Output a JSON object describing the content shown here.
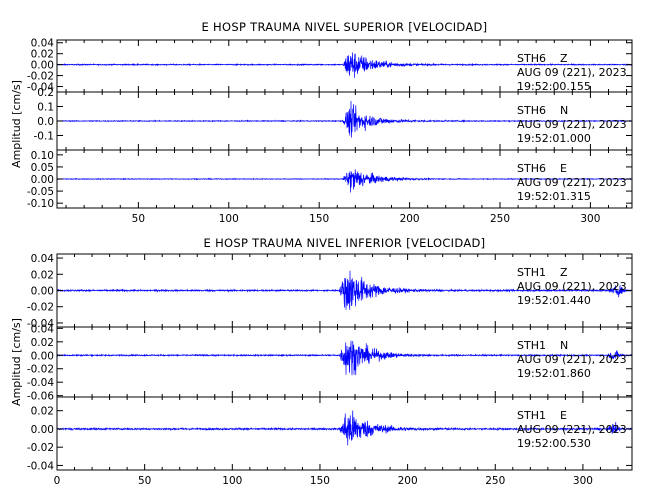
{
  "chart_data": [
    {
      "type": "line",
      "title": "E HOSP TRAUMA NIVEL SUPERIOR [VELOCIDAD]",
      "ylabel": "Amplitud [cm/s]",
      "xlim": [
        5,
        323
      ],
      "x_ticks": [
        50,
        100,
        150,
        200,
        250,
        300
      ],
      "line_color": "#0000ff",
      "series": [
        {
          "station": "STH6",
          "component": "Z",
          "date": "AUG 09 (221), 2023",
          "time": "19:52:00.155",
          "ylim": [
            -0.05,
            0.045
          ],
          "y_ticks": [
            0.04,
            0.02,
            0.0,
            -0.02,
            -0.04
          ],
          "y_tick_labels": [
            "0.04",
            "0.02",
            "0.00",
            "-0.02",
            "-0.04"
          ],
          "baseline_noise": 0.0012,
          "event_onset_s": 163,
          "peak_s": 166,
          "peak_amplitude": 0.042,
          "late_bump": null
        },
        {
          "station": "STH6",
          "component": "N",
          "date": "AUG 09 (221), 2023",
          "time": "19:52:01.000",
          "ylim": [
            -0.2,
            0.2
          ],
          "y_ticks": [
            0.2,
            0.1,
            0.0,
            -0.1
          ],
          "y_tick_labels": [
            "0.2",
            "0.1",
            "0.0",
            "-0.1"
          ],
          "baseline_noise": 0.004,
          "event_onset_s": 163,
          "peak_s": 166,
          "peak_amplitude": 0.15,
          "late_bump": null
        },
        {
          "station": "STH6",
          "component": "E",
          "date": "AUG 09 (221), 2023",
          "time": "19:52:01.315",
          "ylim": [
            -0.12,
            0.12
          ],
          "y_ticks": [
            0.1,
            0.05,
            0.0,
            -0.05,
            -0.1
          ],
          "y_tick_labels": [
            "0.10",
            "0.05",
            "0.00",
            "-0.05",
            "-0.10"
          ],
          "baseline_noise": 0.002,
          "event_onset_s": 163,
          "peak_s": 167,
          "peak_amplitude": 0.075,
          "late_bump": null
        }
      ]
    },
    {
      "type": "line",
      "title": "E HOSP TRAUMA NIVEL INFERIOR [VELOCIDAD]",
      "ylabel": "Amplitud [cm/s]",
      "xlim": [
        0,
        328
      ],
      "x_ticks": [
        0,
        50,
        100,
        150,
        200,
        250,
        300
      ],
      "line_color": "#0000ff",
      "series": [
        {
          "station": "STH1",
          "component": "Z",
          "date": "AUG 09 (221), 2023",
          "time": "19:52:01.440",
          "ylim": [
            -0.045,
            0.045
          ],
          "y_ticks": [
            0.04,
            0.02,
            0.0,
            -0.02,
            -0.04
          ],
          "y_tick_labels": [
            "0.04",
            "0.02",
            "0.00",
            "-0.02",
            "-0.04"
          ],
          "baseline_noise": 0.0012,
          "event_onset_s": 161,
          "peak_s": 165,
          "peak_amplitude": 0.041,
          "late_bump": 320
        },
        {
          "station": "STH1",
          "component": "N",
          "date": "AUG 09 (221), 2023",
          "time": "19:52:01.860",
          "ylim": [
            -0.062,
            0.042
          ],
          "y_ticks": [
            0.04,
            0.02,
            0.0,
            -0.02,
            -0.04,
            -0.06
          ],
          "y_tick_labels": [
            "0.04",
            "0.02",
            "0.00",
            "-0.02",
            "-0.04",
            "-0.06"
          ],
          "baseline_noise": 0.0012,
          "event_onset_s": 161,
          "peak_s": 165,
          "peak_amplitude": 0.045,
          "late_bump": 318
        },
        {
          "station": "STH1",
          "component": "E",
          "date": "AUG 09 (221), 2023",
          "time": "19:52:00.530",
          "ylim": [
            -0.045,
            0.035
          ],
          "y_ticks": [
            0.02,
            0.0,
            -0.02,
            -0.04
          ],
          "y_tick_labels": [
            "0.02",
            "0.00",
            "-0.02",
            "-0.04"
          ],
          "baseline_noise": 0.0012,
          "event_onset_s": 161,
          "peak_s": 165,
          "peak_amplitude": 0.032,
          "late_bump": 318
        }
      ]
    }
  ]
}
